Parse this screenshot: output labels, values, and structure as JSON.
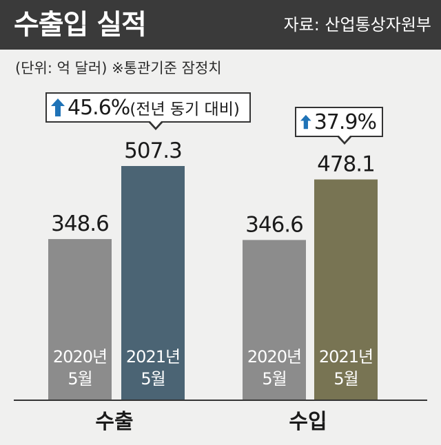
{
  "header": {
    "title": "수출입 실적",
    "source": "자료: 산업통상자원부"
  },
  "unit_note": "(단위: 억 달러) ※통관기준 잠정치",
  "callouts": [
    {
      "pct": "45.6%",
      "note": "(전년 동기 대비)"
    },
    {
      "pct": "37.9%",
      "note": ""
    }
  ],
  "colors": {
    "header_bg": "#3a3a3a",
    "bar_2020": "#8c8c8c",
    "bar_export_2021": "#4b6474",
    "bar_import_2021": "#787453",
    "arrow": "#1f73b7"
  },
  "chart_data": {
    "type": "bar",
    "title": "수출입 실적",
    "ylabel": "억 달러",
    "categories": [
      "수출",
      "수입"
    ],
    "series": [
      {
        "name": "2020년 5월",
        "label_lines": [
          "2020년",
          "5월"
        ],
        "values": [
          348.6,
          346.6
        ]
      },
      {
        "name": "2021년 5월",
        "label_lines": [
          "2021년",
          "5월"
        ],
        "values": [
          507.3,
          478.1
        ]
      }
    ],
    "value_labels": [
      [
        "348.6",
        "507.3"
      ],
      [
        "346.6",
        "478.1"
      ]
    ],
    "ylim": [
      0,
      507.3
    ],
    "grid": false,
    "legend": "none"
  }
}
